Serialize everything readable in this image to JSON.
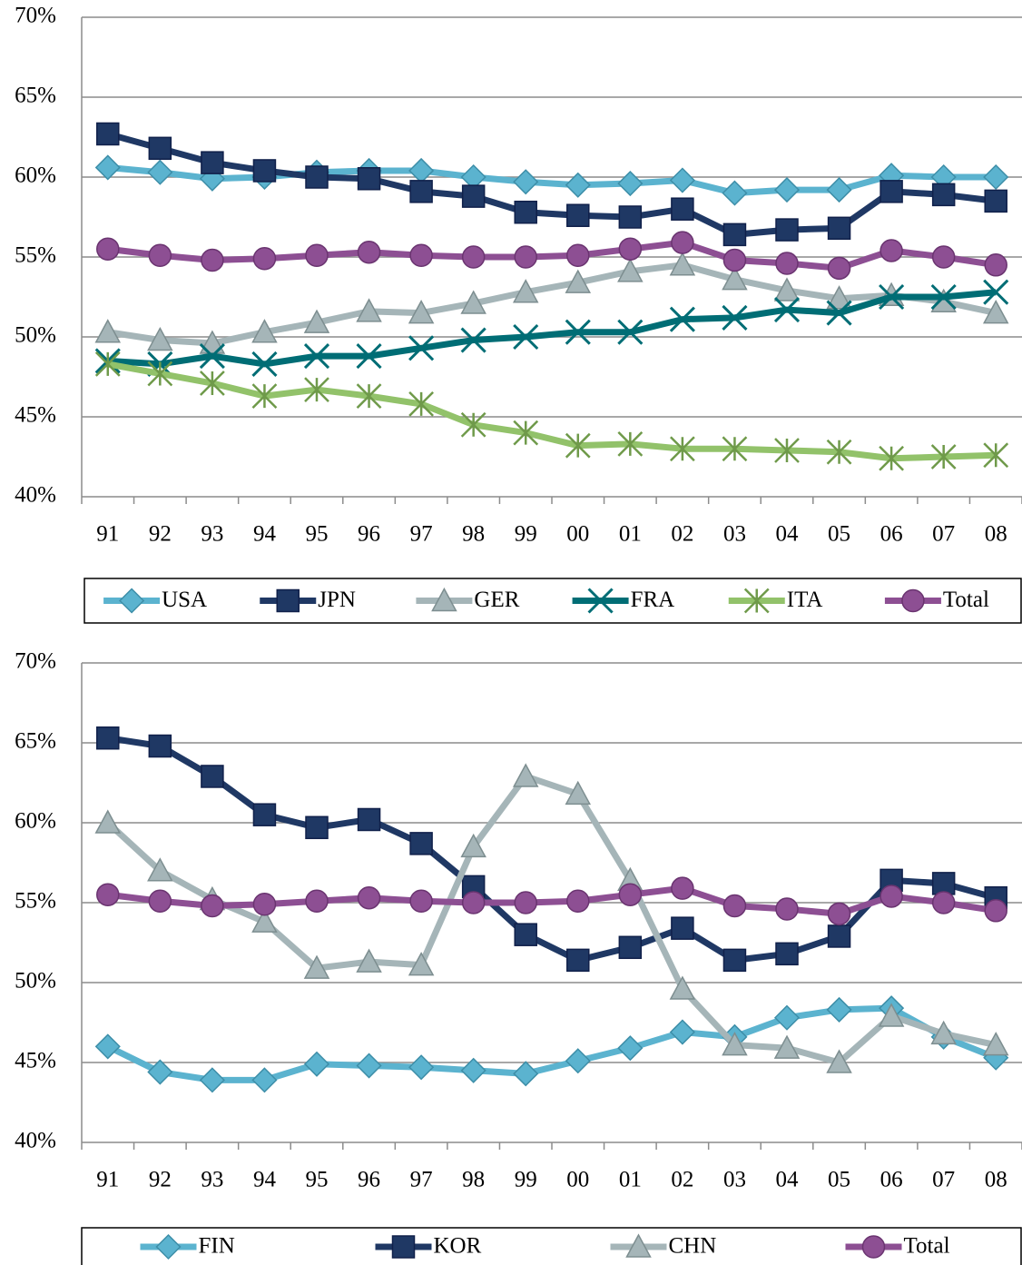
{
  "chart_data": [
    {
      "type": "line",
      "categories": [
        "91",
        "92",
        "93",
        "94",
        "95",
        "96",
        "97",
        "98",
        "99",
        "00",
        "01",
        "02",
        "03",
        "04",
        "05",
        "06",
        "07",
        "08"
      ],
      "ylim": [
        40,
        70
      ],
      "yticks": [
        {
          "value": 40,
          "label": "40%"
        },
        {
          "value": 45,
          "label": "45%"
        },
        {
          "value": 50,
          "label": "50%"
        },
        {
          "value": 55,
          "label": "55%"
        },
        {
          "value": 60,
          "label": "60%"
        },
        {
          "value": 65,
          "label": "65%"
        },
        {
          "value": 70,
          "label": "70%"
        }
      ],
      "grid": true,
      "legend": "bottom",
      "series": [
        {
          "name": "USA",
          "color": "#5bb3cf",
          "marker": "diamond",
          "values": [
            60.6,
            60.3,
            59.9,
            60.0,
            60.3,
            60.4,
            60.4,
            60.0,
            59.7,
            59.5,
            59.6,
            59.8,
            59.0,
            59.2,
            59.2,
            60.1,
            60.0,
            60.0
          ]
        },
        {
          "name": "JPN",
          "color": "#1f3864",
          "marker": "square",
          "values": [
            62.7,
            61.8,
            60.9,
            60.4,
            60.0,
            59.9,
            59.1,
            58.8,
            57.8,
            57.6,
            57.5,
            58.0,
            56.4,
            56.7,
            56.8,
            59.1,
            58.9,
            58.5
          ]
        },
        {
          "name": "GER",
          "color": "#a5b5b8",
          "marker": "triangle",
          "values": [
            50.3,
            49.8,
            49.6,
            50.3,
            50.9,
            51.6,
            51.5,
            52.1,
            52.8,
            53.4,
            54.1,
            54.5,
            53.6,
            52.9,
            52.4,
            52.6,
            52.2,
            51.5
          ]
        },
        {
          "name": "FRA",
          "color": "#006d75",
          "marker": "x",
          "values": [
            48.5,
            48.3,
            48.8,
            48.3,
            48.8,
            48.8,
            49.3,
            49.8,
            50.0,
            50.3,
            50.3,
            51.1,
            51.2,
            51.7,
            51.5,
            52.5,
            52.5,
            52.8
          ]
        },
        {
          "name": "ITA",
          "color": "#92c26a",
          "marker": "star",
          "values": [
            48.3,
            47.7,
            47.1,
            46.3,
            46.7,
            46.3,
            45.8,
            44.5,
            44.0,
            43.2,
            43.3,
            43.0,
            43.0,
            42.9,
            42.8,
            42.4,
            42.5,
            42.6
          ]
        },
        {
          "name": "Total",
          "color": "#8d4f93",
          "marker": "circle",
          "values": [
            55.5,
            55.1,
            54.8,
            54.9,
            55.1,
            55.3,
            55.1,
            55.0,
            55.0,
            55.1,
            55.5,
            55.9,
            54.8,
            54.6,
            54.3,
            55.4,
            55.0,
            54.5
          ]
        }
      ]
    },
    {
      "type": "line",
      "categories": [
        "91",
        "92",
        "93",
        "94",
        "95",
        "96",
        "97",
        "98",
        "99",
        "00",
        "01",
        "02",
        "03",
        "04",
        "05",
        "06",
        "07",
        "08"
      ],
      "ylim": [
        40,
        70
      ],
      "yticks": [
        {
          "value": 40,
          "label": "40%"
        },
        {
          "value": 45,
          "label": "45%"
        },
        {
          "value": 50,
          "label": "50%"
        },
        {
          "value": 55,
          "label": "55%"
        },
        {
          "value": 60,
          "label": "60%"
        },
        {
          "value": 65,
          "label": "65%"
        },
        {
          "value": 70,
          "label": "70%"
        }
      ],
      "grid": true,
      "legend": "bottom",
      "series": [
        {
          "name": "FIN",
          "color": "#5bb3cf",
          "marker": "diamond",
          "values": [
            46.0,
            44.4,
            43.9,
            43.9,
            44.9,
            44.8,
            44.7,
            44.5,
            44.3,
            45.1,
            45.9,
            46.9,
            46.6,
            47.8,
            48.3,
            48.4,
            46.6,
            45.3
          ]
        },
        {
          "name": "KOR",
          "color": "#1f3864",
          "marker": "square",
          "values": [
            65.3,
            64.8,
            62.9,
            60.5,
            59.7,
            60.2,
            58.7,
            56.0,
            53.0,
            51.4,
            52.2,
            53.4,
            51.4,
            51.8,
            52.9,
            56.4,
            56.2,
            55.3
          ]
        },
        {
          "name": "CHN",
          "color": "#a5b5b8",
          "marker": "triangle",
          "values": [
            60.0,
            57.0,
            55.2,
            53.8,
            50.9,
            51.3,
            51.1,
            58.5,
            62.9,
            61.8,
            56.4,
            49.6,
            46.1,
            45.9,
            45.0,
            47.9,
            46.8,
            46.1
          ]
        },
        {
          "name": "Total",
          "color": "#8d4f93",
          "marker": "circle",
          "values": [
            55.5,
            55.1,
            54.8,
            54.9,
            55.1,
            55.3,
            55.1,
            55.0,
            55.0,
            55.1,
            55.5,
            55.9,
            54.8,
            54.6,
            54.3,
            55.4,
            55.0,
            54.5
          ]
        }
      ]
    }
  ]
}
